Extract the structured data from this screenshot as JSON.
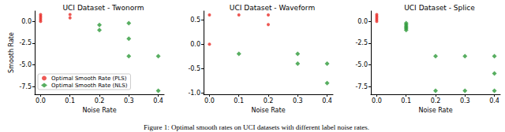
{
  "chart_data": [
    {
      "type": "scatter",
      "title": "UCI Dataset - Twonorm",
      "x_label": "Noise Rate",
      "y_label": "Smooth Rate",
      "xlim": [
        -0.02,
        0.42
      ],
      "xticks": [
        {
          "value": 0,
          "label": "0.0"
        },
        0.1,
        0.2,
        0.3,
        0.4
      ],
      "ylim": [
        -8.4,
        1.2
      ],
      "yticks": [
        -7.5,
        {
          "value": -5,
          "label": "-5.0"
        },
        -2.5,
        {
          "value": 0,
          "label": "0.0"
        }
      ],
      "legend": "lower left",
      "series": [
        {
          "name": "Optimal Smooth Rate (PLS)",
          "color": "#e8302a",
          "marker": "circle",
          "x": [
            0,
            0,
            0,
            0,
            0,
            0.1,
            0.1
          ],
          "values": [
            0.0,
            0.2,
            0.4,
            0.6,
            0.8,
            0.4,
            0.8
          ]
        },
        {
          "name": "Optimal Smooth Rate (NLS)",
          "color": "#2e9a3a",
          "marker": "diamond",
          "x": [
            0.2,
            0.2,
            0.3,
            0.3,
            0.3,
            0.4,
            0.4
          ],
          "values": [
            -0.4,
            -1.0,
            -0.2,
            -2.0,
            -4.0,
            -4.0,
            -8.0
          ]
        }
      ]
    },
    {
      "type": "scatter",
      "title": "UCI Dataset - Waveform",
      "x_label": "Noise Rate",
      "xlim": [
        -0.02,
        0.42
      ],
      "xticks": [
        {
          "value": 0,
          "label": "0.0"
        },
        0.1,
        0.2,
        0.3,
        0.4
      ],
      "ylim": [
        -1.03,
        0.68
      ],
      "yticks": [
        {
          "value": -1,
          "label": "-1.0"
        },
        -0.5,
        {
          "value": 0,
          "label": "0.0"
        },
        0.5
      ],
      "series": [
        {
          "name": "Optimal Smooth Rate (PLS)",
          "color": "#e8302a",
          "marker": "circle",
          "x": [
            0,
            0,
            0.1,
            0.2,
            0.2
          ],
          "values": [
            0.6,
            0.0,
            0.6,
            0.6,
            0.4
          ]
        },
        {
          "name": "Optimal Smooth Rate (NLS)",
          "color": "#2e9a3a",
          "marker": "diamond",
          "x": [
            0.1,
            0.3,
            0.3,
            0.4,
            0.4
          ],
          "values": [
            -0.2,
            -0.2,
            -0.4,
            -0.4,
            -0.8
          ]
        }
      ]
    },
    {
      "type": "scatter",
      "title": "UCI Dataset - Splice",
      "x_label": "Noise Rate",
      "xlim": [
        -0.02,
        0.42
      ],
      "xticks": [
        {
          "value": 0,
          "label": "0.0"
        },
        0.1,
        0.2,
        0.3,
        0.4
      ],
      "ylim": [
        -8.4,
        1.2
      ],
      "yticks": [
        -7.5,
        {
          "value": -5,
          "label": "-5.0"
        },
        -2.5,
        {
          "value": 0,
          "label": "0.0"
        }
      ],
      "series": [
        {
          "name": "Optimal Smooth Rate (PLS)",
          "color": "#e8302a",
          "marker": "circle",
          "x": [
            0,
            0,
            0,
            0,
            0
          ],
          "values": [
            0.0,
            0.2,
            0.4,
            0.6,
            0.8
          ]
        },
        {
          "name": "Optimal Smooth Rate (NLS)",
          "color": "#2e9a3a",
          "marker": "diamond",
          "x": [
            0.1,
            0.1,
            0.1,
            0.1,
            0.1,
            0.2,
            0.2,
            0.3,
            0.3,
            0.4,
            0.4,
            0.4
          ],
          "values": [
            -0.2,
            -0.4,
            -0.6,
            -0.8,
            -1.0,
            -4.0,
            -8.0,
            -4.0,
            -8.0,
            -4.0,
            -6.0,
            -8.0
          ]
        }
      ]
    }
  ],
  "caption": "Figure 1: Optimal smooth rates on UCI datasets with different label noise rates."
}
